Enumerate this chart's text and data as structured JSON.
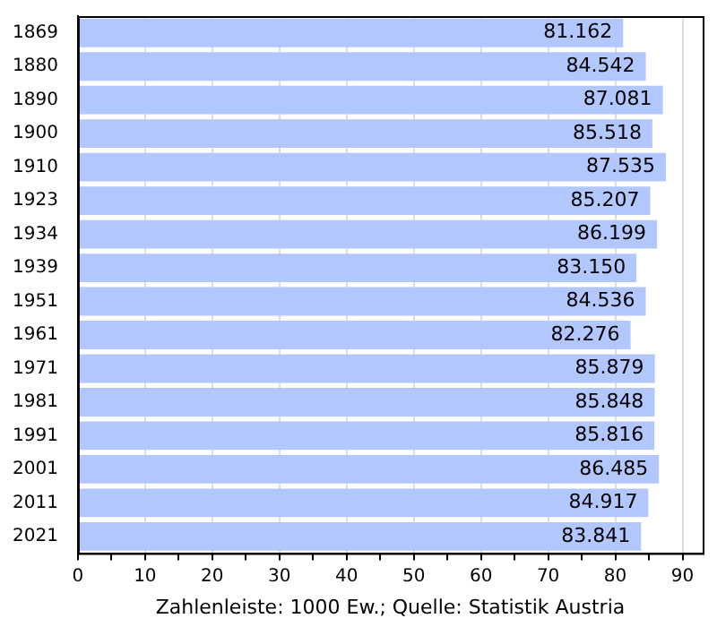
{
  "chart_data": {
    "type": "bar",
    "orientation": "horizontal",
    "xlabel": "Zahlenleiste: 1000 Ew.; Quelle: Statistik Austria",
    "categories": [
      "1869",
      "1880",
      "1890",
      "1900",
      "1910",
      "1923",
      "1934",
      "1939",
      "1951",
      "1961",
      "1971",
      "1981",
      "1991",
      "2001",
      "2011",
      "2021"
    ],
    "values": [
      81.162,
      84.542,
      87.081,
      85.518,
      87.535,
      85.207,
      86.199,
      83.15,
      84.536,
      82.276,
      85.879,
      85.848,
      85.816,
      86.485,
      84.917,
      83.841
    ],
    "value_labels": [
      "81.162",
      "84.542",
      "87.081",
      "85.518",
      "87.535",
      "85.207",
      "86.199",
      "83.150",
      "84.536",
      "82.276",
      "85.879",
      "85.848",
      "85.816",
      "86.485",
      "84.917",
      "83.841"
    ],
    "color": "#b3c7ff",
    "xlim": [
      0,
      93
    ],
    "xticks": [
      0,
      {
        "value": 5,
        "label": null
      },
      10,
      {
        "value": 15,
        "label": null
      },
      20,
      {
        "value": 25,
        "label": null
      },
      30,
      {
        "value": 35,
        "label": null
      },
      40,
      {
        "value": 45,
        "label": null
      },
      50,
      {
        "value": 55,
        "label": null
      },
      60,
      {
        "value": 65,
        "label": null
      },
      70,
      {
        "value": 75,
        "label": null
      },
      80,
      {
        "value": 85,
        "label": null
      },
      90
    ],
    "grid": "x",
    "legend": false
  }
}
